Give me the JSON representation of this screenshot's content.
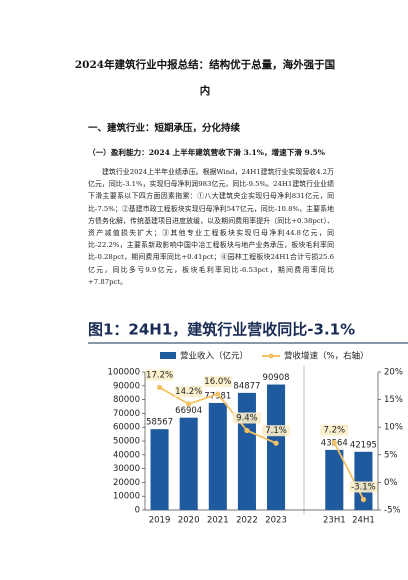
{
  "title": "2024年建筑行业中报总结：结构优于总量，海外强于国内",
  "section": "一、建筑行业：短期承压，分化持续",
  "subsection": "（一）盈利能力：2024 上半年建筑营收下滑 3.1%，增速下滑 9.5%",
  "paragraph": "建筑行业2024上半年业绩承压。根据Wind，24H1建筑行业实现营收4.2万亿元，同比-3.1%，实现归母净利润983亿元，同比-9.5%。24H1建筑行业业绩下滑主要系以下四方面因素拖累：①八大建筑央企实现归母净利831亿元，同比-7.5%；②基建市政工程板块实现归母净利547亿元，同比-10.8%，主要系地方债务化解，传统基建项目进度放缓，以及期间费用率提升（同比+0.38pct）、资产减值损失扩大；③其他专业工程板块实现归母净利44.8亿元，同比-22.2%，主要系新政影响中国中冶工程板块与地产业务承压，板块毛利率同比-0.28pct，期间费用率同比+0.41pct；④园林工程板块24H1合计亏损25.6亿元，同比多亏9.9亿元，板块毛利率同比-6.53pct，期间费用率同比+7.87pct。",
  "chart_data": {
    "type": "combo",
    "title": "图1：24H1，建筑行业营收同比-3.1%",
    "categories": [
      "2019",
      "2020",
      "2021",
      "2022",
      "2023",
      null,
      "23H1",
      "24H1"
    ],
    "series": [
      {
        "name": "营业收入（亿元）",
        "type": "bar",
        "color": "#1f5a9e",
        "values": [
          58567,
          66904,
          77581,
          84877,
          90908,
          null,
          43564,
          42195
        ]
      },
      {
        "name": "营收增速（%，右轴）",
        "type": "line",
        "axis": "y2",
        "color": "#f3c162",
        "values": [
          17.2,
          14.2,
          16.0,
          9.4,
          7.1,
          null,
          7.2,
          -3.1
        ],
        "value_labels": [
          "17.2%",
          "14.2%",
          "16.0%",
          "9.4%",
          "7.1%",
          null,
          "7.2%",
          "-3.1%"
        ]
      }
    ],
    "ylim": [
      0,
      100000
    ],
    "yticks": [
      0,
      10000,
      20000,
      30000,
      40000,
      50000,
      60000,
      70000,
      80000,
      90000,
      100000
    ],
    "y2lim": [
      -5,
      20
    ],
    "y2ticks": [
      {
        "value": -5,
        "label": "-5%"
      },
      {
        "value": 0,
        "label": "0%"
      },
      {
        "value": 5,
        "label": "5%"
      },
      {
        "value": 10,
        "label": "10%"
      },
      {
        "value": 15,
        "label": "15%"
      },
      {
        "value": 20,
        "label": "20%"
      }
    ]
  }
}
